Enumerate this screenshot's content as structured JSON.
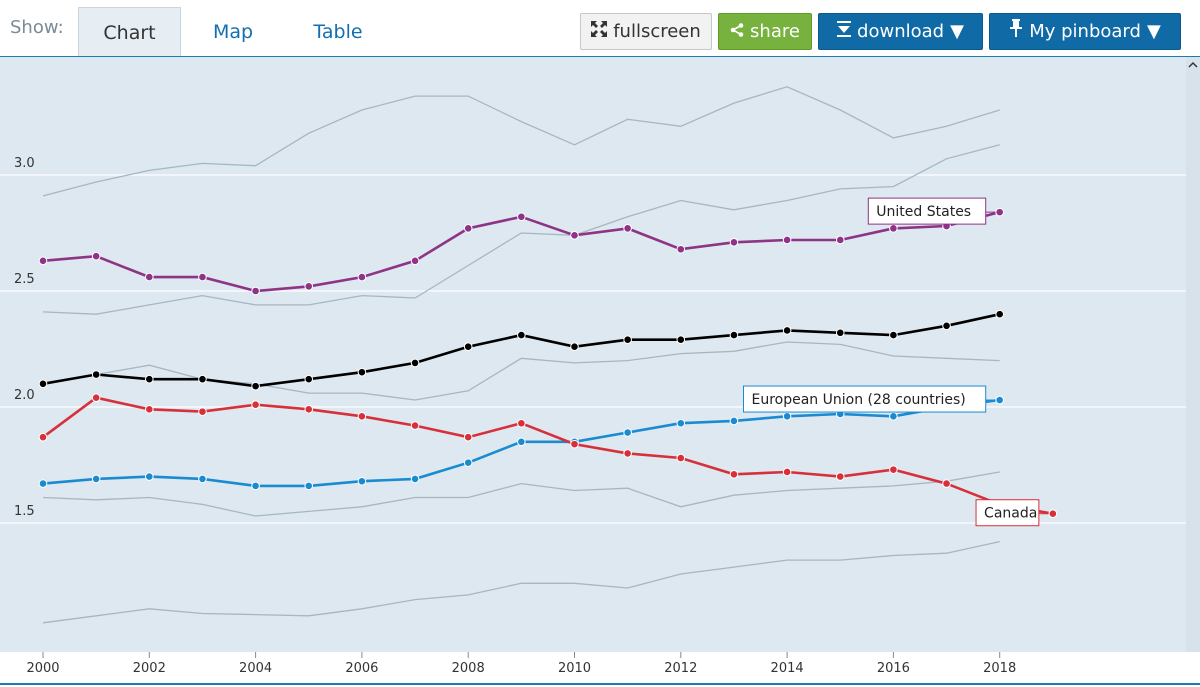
{
  "toolbar": {
    "show_label": "Show:",
    "tabs": [
      {
        "label": "Chart",
        "active": true
      },
      {
        "label": "Map",
        "active": false
      },
      {
        "label": "Table",
        "active": false
      }
    ],
    "fullscreen_label": "fullscreen",
    "share_label": "share",
    "download_label": "download",
    "pinboard_label": "My pinboard"
  },
  "colors": {
    "background": "#dde8f0",
    "united_states": "#8e3386",
    "european_union": "#1a8bd1",
    "canada": "#d8303a",
    "highlight": "#000000",
    "context": "#a9b6c0",
    "share_button": "#76b23d",
    "primary_button": "#0f6aa6"
  },
  "chart_data": {
    "type": "line",
    "xlabel": "",
    "ylabel": "",
    "x_ticks": [
      2000,
      2002,
      2004,
      2006,
      2008,
      2010,
      2012,
      2014,
      2016,
      2018
    ],
    "y_ticks": [
      "3.0",
      "2.5",
      "2.0",
      "1.5"
    ],
    "xlim": [
      2000,
      2019.2
    ],
    "ylim": [
      1.05,
      3.4
    ],
    "grid": true,
    "series": [
      {
        "name": "United States",
        "role": "labeled",
        "label_text": "United States",
        "x": [
          2000,
          2001,
          2002,
          2003,
          2004,
          2005,
          2006,
          2007,
          2008,
          2009,
          2010,
          2011,
          2012,
          2013,
          2014,
          2015,
          2016,
          2017,
          2018
        ],
        "values": [
          2.63,
          2.65,
          2.56,
          2.56,
          2.5,
          2.52,
          2.56,
          2.63,
          2.77,
          2.82,
          2.74,
          2.77,
          2.68,
          2.71,
          2.72,
          2.72,
          2.77,
          2.78,
          2.84
        ]
      },
      {
        "name": "European Union (28 countries)",
        "role": "labeled",
        "label_text": "European Union (28 countries)",
        "x": [
          2000,
          2001,
          2002,
          2003,
          2004,
          2005,
          2006,
          2007,
          2008,
          2009,
          2010,
          2011,
          2012,
          2013,
          2014,
          2015,
          2016,
          2017,
          2018
        ],
        "values": [
          1.67,
          1.69,
          1.7,
          1.69,
          1.66,
          1.66,
          1.68,
          1.69,
          1.76,
          1.85,
          1.85,
          1.89,
          1.93,
          1.94,
          1.96,
          1.97,
          1.96,
          2.0,
          2.03
        ]
      },
      {
        "name": "Canada",
        "role": "labeled",
        "label_text": "Canada",
        "x": [
          2000,
          2001,
          2002,
          2003,
          2004,
          2005,
          2006,
          2007,
          2008,
          2009,
          2010,
          2011,
          2012,
          2013,
          2014,
          2015,
          2016,
          2017,
          2018,
          2019
        ],
        "values": [
          1.87,
          2.04,
          1.99,
          1.98,
          2.01,
          1.99,
          1.96,
          1.92,
          1.87,
          1.93,
          1.84,
          1.8,
          1.78,
          1.71,
          1.72,
          1.7,
          1.73,
          1.67,
          1.58,
          1.54
        ]
      },
      {
        "name": "",
        "role": "highlight",
        "x": [
          2000,
          2001,
          2002,
          2003,
          2004,
          2005,
          2006,
          2007,
          2008,
          2009,
          2010,
          2011,
          2012,
          2013,
          2014,
          2015,
          2016,
          2017,
          2018
        ],
        "values": [
          2.1,
          2.14,
          2.12,
          2.12,
          2.09,
          2.12,
          2.15,
          2.19,
          2.26,
          2.31,
          2.26,
          2.29,
          2.29,
          2.31,
          2.33,
          2.32,
          2.31,
          2.35,
          2.4
        ]
      },
      {
        "name": "",
        "role": "context",
        "x": [
          2000,
          2001,
          2002,
          2003,
          2004,
          2005,
          2006,
          2007,
          2008,
          2009,
          2010,
          2011,
          2012,
          2013,
          2014,
          2015,
          2016,
          2017,
          2018
        ],
        "values": [
          2.91,
          2.97,
          3.02,
          3.05,
          3.04,
          3.18,
          3.28,
          3.34,
          3.34,
          3.23,
          3.13,
          3.24,
          3.21,
          3.31,
          3.38,
          3.28,
          3.16,
          3.21,
          3.28
        ]
      },
      {
        "name": "",
        "role": "context",
        "x": [
          2000,
          2001,
          2002,
          2003,
          2004,
          2005,
          2006,
          2007,
          2008,
          2009,
          2010,
          2011,
          2012,
          2013,
          2014,
          2015,
          2016,
          2017,
          2018
        ],
        "values": [
          2.41,
          2.4,
          2.44,
          2.48,
          2.44,
          2.44,
          2.48,
          2.47,
          2.61,
          2.75,
          2.74,
          2.82,
          2.89,
          2.85,
          2.89,
          2.94,
          2.95,
          3.07,
          3.13
        ]
      },
      {
        "name": "",
        "role": "context",
        "x": [
          2000,
          2001,
          2002,
          2003,
          2004,
          2005,
          2006,
          2007,
          2008,
          2009,
          2010,
          2011,
          2012,
          2013,
          2014,
          2015,
          2016,
          2017,
          2018
        ],
        "values": [
          2.1,
          2.14,
          2.18,
          2.12,
          2.1,
          2.06,
          2.06,
          2.03,
          2.07,
          2.21,
          2.19,
          2.2,
          2.23,
          2.24,
          2.28,
          2.27,
          2.22,
          2.21,
          2.2
        ]
      },
      {
        "name": "",
        "role": "context",
        "x": [
          2000,
          2001,
          2002,
          2003,
          2004,
          2005,
          2006,
          2007,
          2008,
          2009,
          2010,
          2011,
          2012,
          2013,
          2014,
          2015,
          2016,
          2017,
          2018
        ],
        "values": [
          1.61,
          1.6,
          1.61,
          1.58,
          1.53,
          1.55,
          1.57,
          1.61,
          1.61,
          1.67,
          1.64,
          1.65,
          1.57,
          1.62,
          1.64,
          1.65,
          1.66,
          1.68,
          1.72
        ]
      },
      {
        "name": "",
        "role": "context",
        "x": [
          2000,
          2001,
          2002,
          2003,
          2004,
          2005,
          2006,
          2007,
          2008,
          2009,
          2010,
          2011,
          2012,
          2013,
          2014,
          2015,
          2016,
          2017,
          2018
        ],
        "values": [
          1.07,
          1.1,
          1.13,
          1.11,
          1.105,
          1.1,
          1.13,
          1.17,
          1.19,
          1.24,
          1.24,
          1.22,
          1.28,
          1.31,
          1.34,
          1.34,
          1.36,
          1.37,
          1.42
        ]
      }
    ]
  }
}
